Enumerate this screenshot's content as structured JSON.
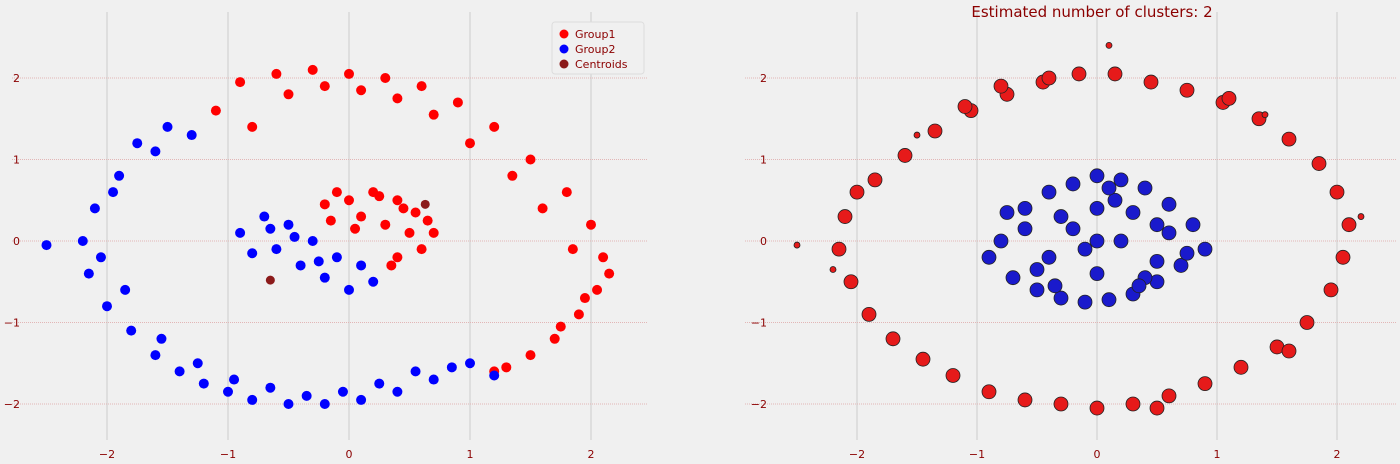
{
  "chart_data": [
    {
      "type": "scatter",
      "title": "",
      "xlabel": "",
      "ylabel": "",
      "xlim": [
        -2.5,
        2.5
      ],
      "ylim": [
        -2.45,
        2.55
      ],
      "xticks": [
        -2,
        -1,
        0,
        1,
        2
      ],
      "yticks": [
        -2,
        -1,
        0,
        1,
        2
      ],
      "grid": true,
      "legend_position": "top-right",
      "series": [
        {
          "name": "Group1",
          "color": "#ff0000",
          "description_region": "outer ring for x > ~-1 in upper half and right side, plus upper-right part of inner cluster",
          "x": [
            -1.1,
            -0.9,
            -0.6,
            -0.3,
            0.0,
            0.3,
            0.6,
            0.9,
            1.2,
            1.5,
            1.8,
            2.0,
            2.1,
            2.05,
            1.9,
            1.7,
            1.5,
            1.3,
            1.2,
            -0.8,
            -0.5,
            -0.2,
            0.1,
            0.4,
            0.7,
            1.0,
            1.35,
            1.6,
            1.85,
            2.15,
            1.95,
            1.75,
            0.0,
            0.2,
            0.4,
            0.55,
            0.7,
            -0.2,
            -0.1,
            0.1,
            0.3,
            0.5,
            0.6,
            0.25,
            0.45,
            0.65,
            0.4,
            0.35,
            -0.15,
            0.05
          ],
          "y": [
            1.6,
            1.95,
            2.05,
            2.1,
            2.05,
            2.0,
            1.9,
            1.7,
            1.4,
            1.0,
            0.6,
            0.2,
            -0.2,
            -0.6,
            -0.9,
            -1.2,
            -1.4,
            -1.55,
            -1.6,
            1.4,
            1.8,
            1.9,
            1.85,
            1.75,
            1.55,
            1.2,
            0.8,
            0.4,
            -0.1,
            -0.4,
            -0.7,
            -1.05,
            0.5,
            0.6,
            0.5,
            0.35,
            0.1,
            0.45,
            0.6,
            0.3,
            0.2,
            0.1,
            -0.1,
            0.55,
            0.4,
            0.25,
            -0.2,
            -0.3,
            0.25,
            0.15
          ]
        },
        {
          "name": "Group2",
          "color": "#0000ff",
          "description_region": "outer ring for x < ~-1 and lower half, plus lower-left part of inner cluster",
          "x": [
            -1.3,
            -1.6,
            -1.9,
            -2.1,
            -2.2,
            -2.15,
            -2.0,
            -1.8,
            -1.6,
            -1.4,
            -1.2,
            -1.0,
            -0.8,
            -0.5,
            -0.2,
            0.1,
            0.4,
            0.7,
            1.0,
            1.2,
            -1.5,
            -1.75,
            -1.95,
            -2.05,
            -1.85,
            -1.55,
            -1.25,
            -0.95,
            -0.65,
            -0.35,
            -0.05,
            0.25,
            0.55,
            0.85,
            -2.5,
            -0.9,
            -0.7,
            -0.5,
            -0.3,
            -0.1,
            0.1,
            0.2,
            -0.6,
            -0.4,
            -0.2,
            0.0,
            -0.8,
            -0.65,
            -0.45,
            -0.25
          ],
          "y": [
            1.3,
            1.1,
            0.8,
            0.4,
            0.0,
            -0.4,
            -0.8,
            -1.1,
            -1.4,
            -1.6,
            -1.75,
            -1.85,
            -1.95,
            -2.0,
            -2.0,
            -1.95,
            -1.85,
            -1.7,
            -1.5,
            -1.65,
            1.4,
            1.2,
            0.6,
            -0.2,
            -0.6,
            -1.2,
            -1.5,
            -1.7,
            -1.8,
            -1.9,
            -1.85,
            -1.75,
            -1.6,
            -1.55,
            -0.05,
            0.1,
            0.3,
            0.2,
            0.0,
            -0.2,
            -0.3,
            -0.5,
            -0.1,
            -0.3,
            -0.45,
            -0.6,
            -0.15,
            0.15,
            0.05,
            -0.25
          ]
        },
        {
          "name": "Centroids",
          "color": "#8b1a1a",
          "x": [
            0.63,
            -0.65
          ],
          "y": [
            0.45,
            -0.48
          ]
        }
      ]
    },
    {
      "type": "scatter",
      "title": "Estimated number of clusters: 2",
      "xlabel": "",
      "ylabel": "",
      "xlim": [
        -2.5,
        2.5
      ],
      "ylim": [
        -2.45,
        2.55
      ],
      "xticks": [
        -2,
        -1,
        0,
        1,
        2
      ],
      "yticks": [
        -2,
        -1,
        0,
        1,
        2
      ],
      "grid": true,
      "series": [
        {
          "color": "#e61a1a",
          "description_region": "outer ring cluster (larger markers for core samples, smaller for border samples)",
          "x": [
            -2.0,
            -2.1,
            -2.15,
            -2.05,
            -1.9,
            -1.7,
            -1.45,
            -1.2,
            -0.9,
            -0.6,
            -0.3,
            0.0,
            0.3,
            0.6,
            0.9,
            1.2,
            1.5,
            1.75,
            1.95,
            2.05,
            2.1,
            2.0,
            1.85,
            1.6,
            1.35,
            1.05,
            0.75,
            0.45,
            0.15,
            -0.15,
            -0.45,
            -0.75,
            -1.05,
            -1.35,
            -1.6,
            -1.85,
            -1.1,
            -0.8,
            -0.4,
            0.5,
            1.1,
            1.6,
            -2.5,
            -2.2,
            2.2,
            0.1,
            -1.5,
            1.4
          ],
          "y": [
            0.6,
            0.3,
            -0.1,
            -0.5,
            -0.9,
            -1.2,
            -1.45,
            -1.65,
            -1.85,
            -1.95,
            -2.0,
            -2.05,
            -2.0,
            -1.9,
            -1.75,
            -1.55,
            -1.3,
            -1.0,
            -0.6,
            -0.2,
            0.2,
            0.6,
            0.95,
            1.25,
            1.5,
            1.7,
            1.85,
            1.95,
            2.05,
            2.05,
            1.95,
            1.8,
            1.6,
            1.35,
            1.05,
            0.75,
            1.65,
            1.9,
            2.0,
            -2.05,
            1.75,
            -1.35,
            -0.05,
            -0.35,
            0.3,
            2.4,
            1.3,
            1.55
          ],
          "sizes": [
            1,
            1,
            1,
            1,
            1,
            1,
            1,
            1,
            1,
            1,
            1,
            1,
            1,
            1,
            1,
            1,
            1,
            1,
            1,
            1,
            1,
            1,
            1,
            1,
            1,
            1,
            1,
            1,
            1,
            1,
            1,
            1,
            1,
            1,
            1,
            1,
            1,
            1,
            1,
            1,
            1,
            1,
            0,
            0,
            0,
            0,
            0,
            0
          ]
        },
        {
          "color": "#1a1acc",
          "description_region": "inner disc cluster",
          "x": [
            -0.8,
            -0.6,
            -0.4,
            -0.2,
            0.0,
            0.2,
            0.4,
            0.6,
            0.8,
            0.9,
            -0.9,
            -0.7,
            -0.5,
            -0.3,
            -0.1,
            0.1,
            0.3,
            0.5,
            0.7,
            -0.6,
            -0.3,
            0.0,
            0.3,
            0.6,
            -0.4,
            -0.1,
            0.2,
            0.5,
            -0.5,
            0.0,
            0.5,
            -0.2,
            0.15,
            0.4,
            -0.75,
            0.75,
            -0.35,
            0.35,
            0.0,
            0.1
          ],
          "y": [
            0.0,
            0.4,
            0.6,
            0.7,
            0.8,
            0.75,
            0.65,
            0.45,
            0.2,
            -0.1,
            -0.2,
            -0.45,
            -0.6,
            -0.7,
            -0.75,
            -0.72,
            -0.65,
            -0.5,
            -0.3,
            0.15,
            0.3,
            0.4,
            0.35,
            0.1,
            -0.2,
            -0.1,
            0.0,
            -0.25,
            -0.35,
            -0.4,
            0.2,
            0.15,
            0.5,
            -0.45,
            0.35,
            -0.15,
            -0.55,
            -0.55,
            0.0,
            0.65
          ],
          "sizes": [
            1,
            1,
            1,
            1,
            1,
            1,
            1,
            1,
            1,
            1,
            1,
            1,
            1,
            1,
            1,
            1,
            1,
            1,
            1,
            1,
            1,
            1,
            1,
            1,
            1,
            1,
            1,
            1,
            1,
            1,
            1,
            1,
            1,
            1,
            1,
            1,
            1,
            1,
            1,
            1
          ]
        }
      ]
    }
  ],
  "legend": {
    "items": [
      {
        "label": "Group1",
        "color": "#ff0000"
      },
      {
        "label": "Group2",
        "color": "#0000ff"
      },
      {
        "label": "Centroids",
        "color": "#8b1a1a"
      }
    ]
  }
}
